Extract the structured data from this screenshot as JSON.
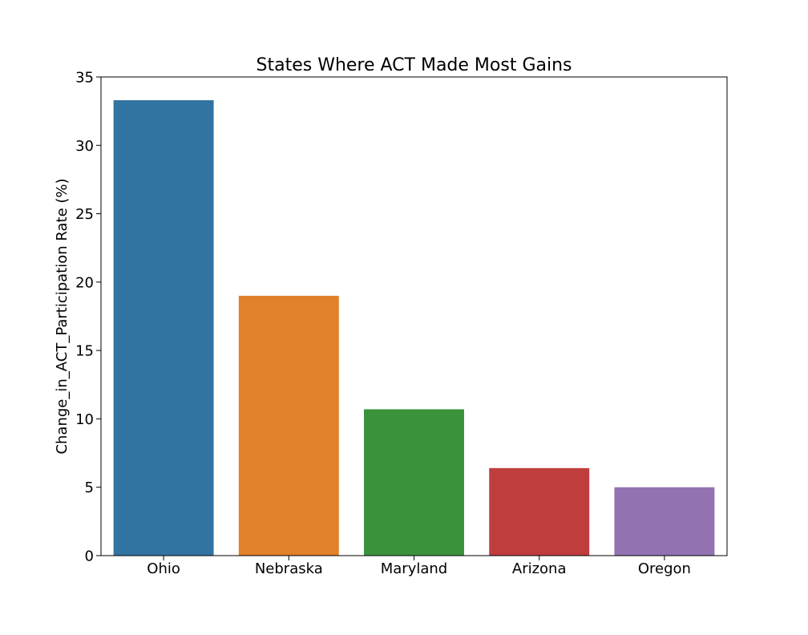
{
  "chart_data": {
    "type": "bar",
    "title": "States Where ACT Made Most Gains",
    "xlabel": "",
    "ylabel": "Change_in_ACT_Participation Rate (%)",
    "categories": [
      "Ohio",
      "Nebraska",
      "Maryland",
      "Arizona",
      "Oregon"
    ],
    "values": [
      33.3,
      19.0,
      10.7,
      6.4,
      5.0
    ],
    "ylim": [
      0,
      35
    ],
    "yticks": [
      0,
      5,
      10,
      15,
      20,
      25,
      30,
      35
    ],
    "colors": [
      "#3274a1",
      "#e1812c",
      "#3a923a",
      "#c03d3e",
      "#9372b2"
    ],
    "grid": false,
    "legend": "none"
  }
}
